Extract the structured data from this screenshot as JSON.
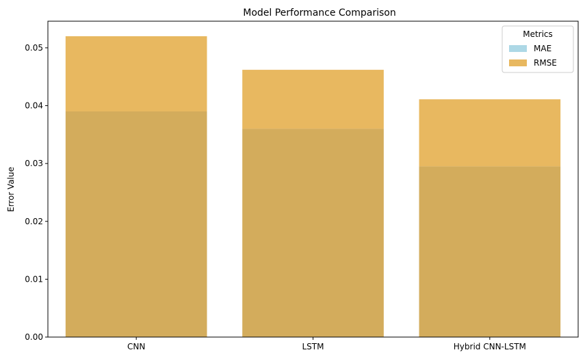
{
  "chart_data": {
    "type": "bar",
    "title": "Model Performance Comparison",
    "xlabel": "",
    "ylabel": "Error Value",
    "categories": [
      "CNN",
      "LSTM",
      "Hybrid CNN-LSTM"
    ],
    "series": [
      {
        "name": "MAE",
        "values": [
          0.039,
          0.036,
          0.0295
        ],
        "color": "#add8e6"
      },
      {
        "name": "RMSE",
        "values": [
          0.052,
          0.0462,
          0.0411
        ],
        "color": "#e8b860"
      }
    ],
    "overlap_color": "#d3ac5c",
    "ylim": [
      0,
      0.0546
    ],
    "yticks": [
      "0.00",
      "0.01",
      "0.02",
      "0.03",
      "0.04",
      "0.05"
    ],
    "legend": {
      "title": "Metrics",
      "placement": "top-right"
    },
    "grid": false
  }
}
